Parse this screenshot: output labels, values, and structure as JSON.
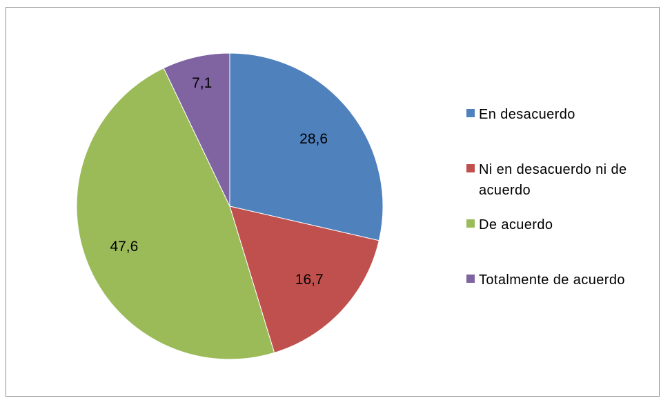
{
  "chart_data": {
    "type": "pie",
    "categories": [
      "En desacuerdo",
      "Ni en desacuerdo ni de acuerdo",
      "De acuerdo",
      "Totalmente de acuerdo"
    ],
    "values": [
      28.6,
      16.7,
      47.6,
      7.1
    ],
    "value_labels": [
      "28,6",
      "16,7",
      "47,6",
      "7,1"
    ],
    "colors": [
      "#4f81bd",
      "#c0504d",
      "#9bbb59",
      "#8064a2"
    ],
    "legend_position": "right",
    "title": ""
  }
}
